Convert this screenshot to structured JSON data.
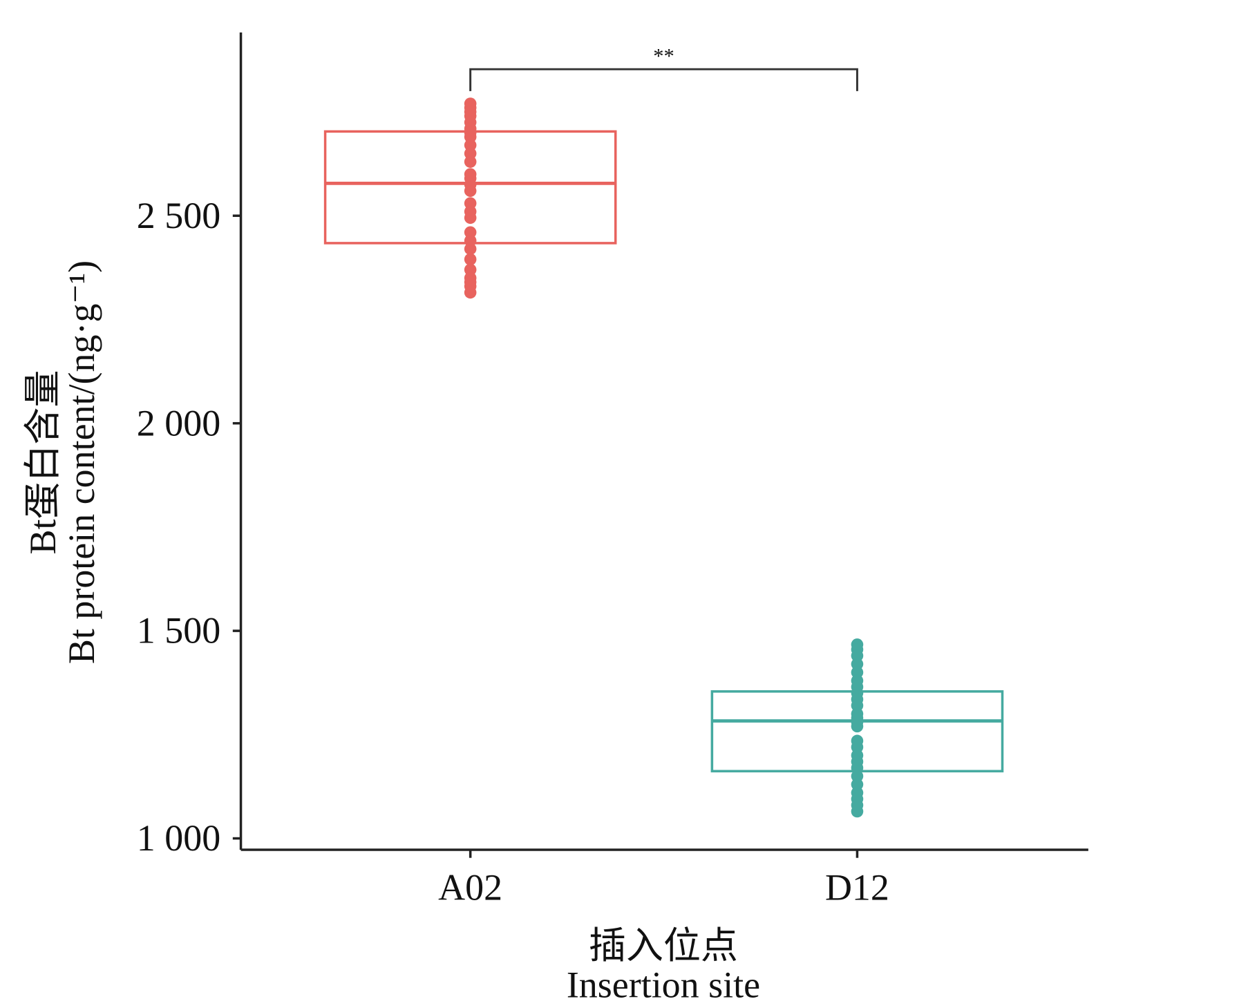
{
  "chart_data": {
    "type": "box",
    "xlabel_cn": "插入位点",
    "xlabel": "Insertion site",
    "ylabel_cn": "Bt蛋白含量",
    "ylabel": "Bt protein content/(ng·g⁻¹)",
    "categories": [
      "A02",
      "D12"
    ],
    "ylim": [
      973,
      2941
    ],
    "yticks": [
      1000,
      1500,
      2000,
      2500
    ],
    "ytick_labels": [
      "1 000",
      "1 500",
      "2 000",
      "2 500"
    ],
    "grid": false,
    "series": [
      {
        "category": "A02",
        "color": "#e8635e",
        "q1": 2434,
        "median": 2578,
        "q3": 2703,
        "points": [
          2770,
          2760,
          2750,
          2740,
          2725,
          2710,
          2700,
          2690,
          2670,
          2650,
          2630,
          2600,
          2590,
          2575,
          2560,
          2530,
          2510,
          2495,
          2460,
          2440,
          2420,
          2395,
          2370,
          2350,
          2340,
          2330,
          2315
        ]
      },
      {
        "category": "D12",
        "color": "#45aaa0",
        "q1": 1162,
        "median": 1283,
        "q3": 1354,
        "points": [
          1467,
          1455,
          1440,
          1420,
          1400,
          1380,
          1365,
          1350,
          1335,
          1320,
          1300,
          1290,
          1280,
          1270,
          1235,
          1220,
          1200,
          1185,
          1170,
          1150,
          1130,
          1110,
          1095,
          1080,
          1065
        ]
      }
    ],
    "significance": {
      "from": "A02",
      "to": "D12",
      "label": "**",
      "y": 2853
    }
  }
}
